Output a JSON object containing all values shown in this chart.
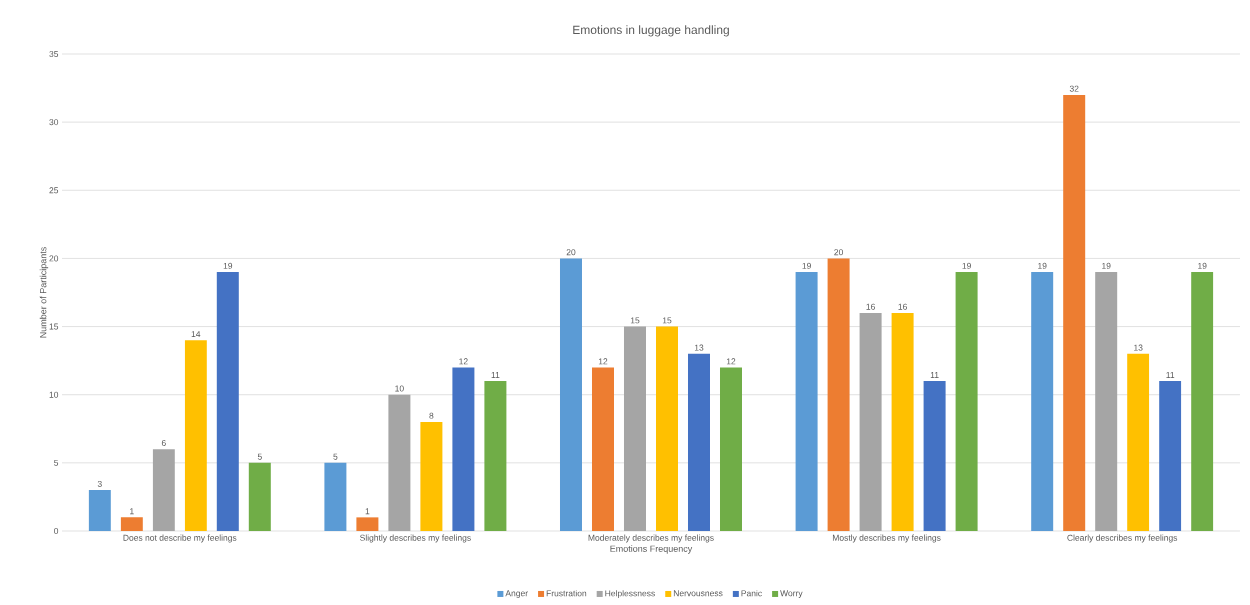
{
  "chart_data": {
    "type": "bar",
    "title": "Emotions in luggage handling",
    "xlabel": "Emotions Frequency",
    "ylabel": "Number of Participants",
    "categories": [
      "Does not describe my feelings",
      "Slightly describes my feelings",
      "Moderately describes my feelings",
      "Mostly describes my feelings",
      "Clearly describes my feelings"
    ],
    "series": [
      {
        "name": "Anger",
        "color": "#5b9bd5",
        "values": [
          3,
          5,
          20,
          19,
          19
        ]
      },
      {
        "name": "Frustration",
        "color": "#ed7d31",
        "values": [
          1,
          1,
          12,
          20,
          32
        ]
      },
      {
        "name": "Helplessness",
        "color": "#a5a5a5",
        "values": [
          6,
          10,
          15,
          16,
          19
        ]
      },
      {
        "name": "Nervousness",
        "color": "#ffc000",
        "values": [
          14,
          8,
          15,
          16,
          13
        ]
      },
      {
        "name": "Panic",
        "color": "#4472c4",
        "values": [
          19,
          12,
          13,
          11,
          11
        ]
      },
      {
        "name": "Worry",
        "color": "#70ad47",
        "values": [
          5,
          11,
          12,
          19,
          19
        ]
      }
    ],
    "ylim": [
      0,
      35
    ],
    "yticks": [
      0,
      5,
      10,
      15,
      20,
      25,
      30,
      35
    ],
    "grid": "y",
    "legend": "bottom",
    "data_labels": true
  }
}
